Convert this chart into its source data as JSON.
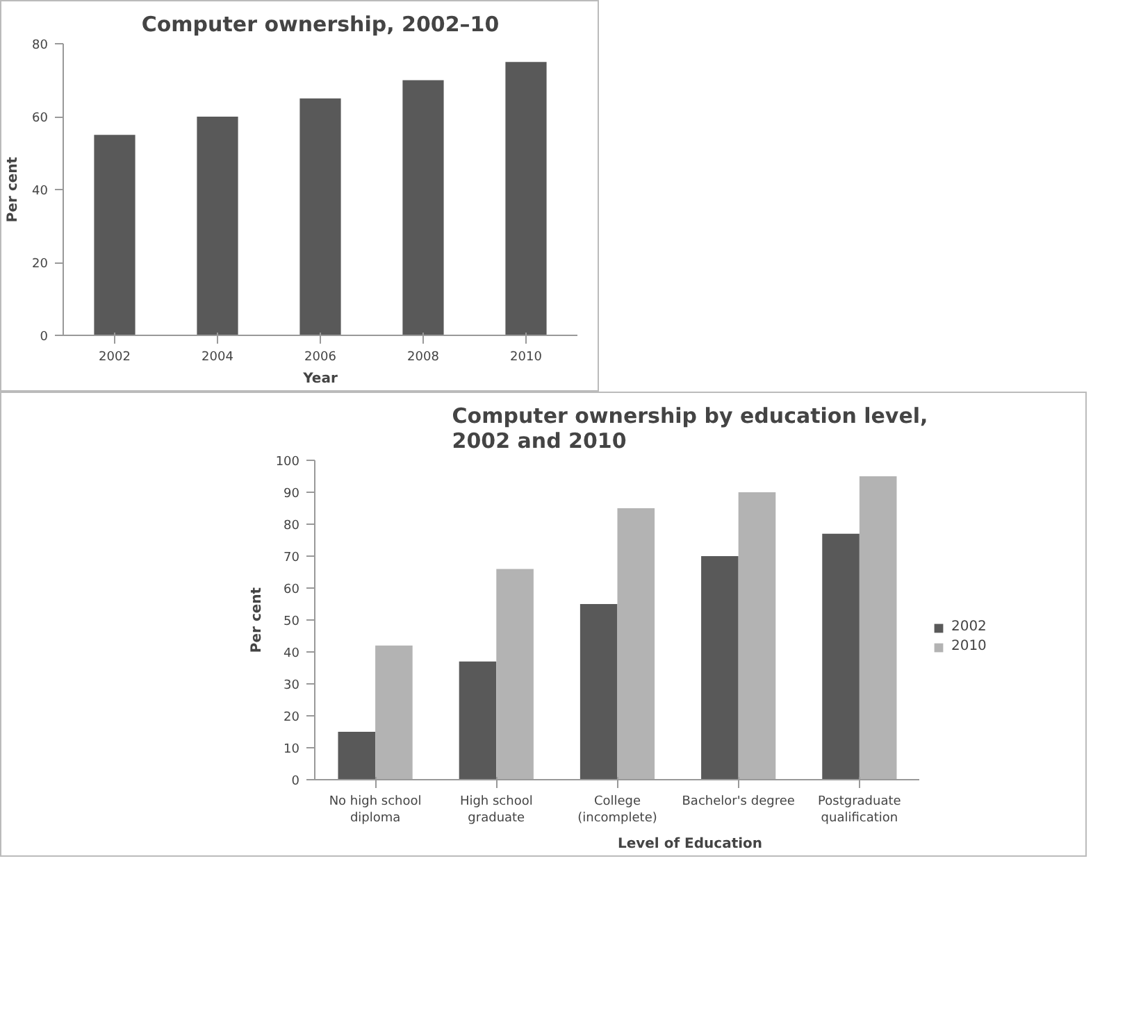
{
  "chart_data": [
    {
      "type": "bar",
      "title": "Computer ownership, 2002–10",
      "xlabel": "Year",
      "ylabel": "Per cent",
      "categories": [
        "2002",
        "2004",
        "2006",
        "2008",
        "2010"
      ],
      "values": [
        55,
        60,
        65,
        70,
        75
      ],
      "color": "#595959",
      "ylim": [
        0,
        80
      ],
      "yticks": [
        0,
        20,
        40,
        60,
        80
      ]
    },
    {
      "type": "bar",
      "title": "Computer ownership by education level,\n2002 and 2010",
      "xlabel": "Level of Education",
      "ylabel": "Per cent",
      "categories": [
        "No high school\ndiploma",
        "High school\ngraduate",
        "College\n(incomplete)",
        "Bachelor's degree",
        "Postgraduate\nqualification"
      ],
      "series": [
        {
          "name": "2002",
          "color": "#595959",
          "values": [
            15,
            37,
            55,
            70,
            77
          ]
        },
        {
          "name": "2010",
          "color": "#b3b3b3",
          "values": [
            42,
            66,
            85,
            90,
            95
          ]
        }
      ],
      "ylim": [
        0,
        100
      ],
      "yticks": [
        0,
        10,
        20,
        30,
        40,
        50,
        60,
        70,
        80,
        90,
        100
      ],
      "legend": "right"
    }
  ]
}
